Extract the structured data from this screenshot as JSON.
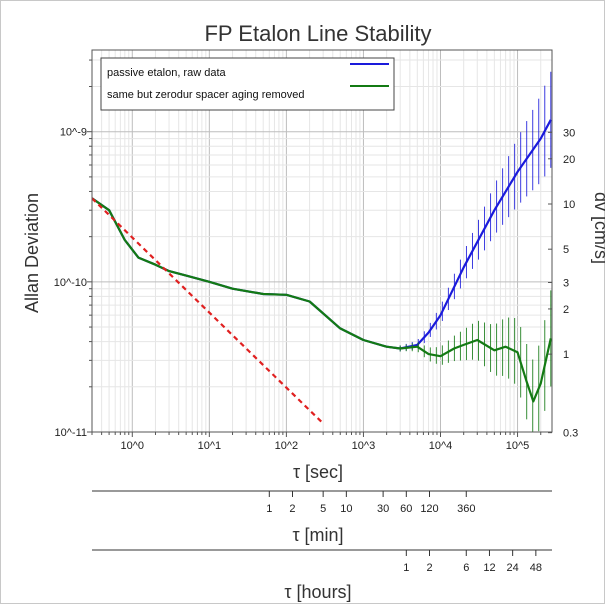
{
  "chart_data": {
    "type": "line",
    "title": "FP Etalon Line Stability",
    "xlabel": "τ [sec]",
    "ylabel": "Allan Deviation",
    "ylabel_right": "dv [cm/s]",
    "x_scale": "log",
    "y_scale": "log",
    "xlim": [
      0.3,
      280000
    ],
    "ylim": [
      1e-11,
      3.5e-09
    ],
    "grid": true,
    "legend_position": "top-left",
    "x_ticks": [
      {
        "value": 1,
        "label": "10^0"
      },
      {
        "value": 10,
        "label": "10^1"
      },
      {
        "value": 100,
        "label": "10^2"
      },
      {
        "value": 1000,
        "label": "10^3"
      },
      {
        "value": 10000,
        "label": "10^4"
      },
      {
        "value": 100000,
        "label": "10^5"
      }
    ],
    "y_ticks": [
      {
        "value": 1e-11,
        "label": "10^-11"
      },
      {
        "value": 1e-10,
        "label": "10^-10"
      },
      {
        "value": 1e-09,
        "label": "10^-9"
      }
    ],
    "right_ticks": [
      {
        "value": 0.3,
        "label": "0.3"
      },
      {
        "value": 1,
        "label": "1"
      },
      {
        "value": 2,
        "label": "2"
      },
      {
        "value": 3,
        "label": "3"
      },
      {
        "value": 5,
        "label": "5"
      },
      {
        "value": 10,
        "label": "10"
      },
      {
        "value": 20,
        "label": "20"
      },
      {
        "value": 30,
        "label": "30"
      }
    ],
    "right_scale_equiv": {
      "dv": 1,
      "allan": 3.3e-11
    },
    "secondary_axes": [
      {
        "label": "τ [min]",
        "seconds_per_unit": 60,
        "ticks": [
          1,
          2,
          5,
          10,
          30,
          60,
          120,
          360
        ]
      },
      {
        "label": "τ [hours]",
        "seconds_per_unit": 3600,
        "ticks": [
          1,
          2,
          6,
          12,
          24,
          48
        ]
      }
    ],
    "series": [
      {
        "name": "passive etalon, raw data",
        "color": "#1a1adb",
        "x": [
          0.3,
          0.5,
          0.8,
          1.2,
          2,
          3,
          5,
          10,
          20,
          50,
          100,
          200,
          500,
          1000,
          2000,
          3000,
          5000,
          7000,
          10000,
          20000,
          50000,
          100000,
          200000,
          270000
        ],
        "y": [
          3.6e-10,
          3e-10,
          1.9e-10,
          1.45e-10,
          1.3e-10,
          1.18e-10,
          1.1e-10,
          1e-10,
          9e-11,
          8.3e-11,
          8.2e-11,
          7.4e-11,
          4.9e-11,
          4.1e-11,
          3.7e-11,
          3.6e-11,
          3.8e-11,
          4.6e-11,
          6e-11,
          1.25e-10,
          3e-10,
          5.4e-10,
          9e-10,
          1.2e-09
        ],
        "error_bars_from_x": 3000
      },
      {
        "name": "same but zerodur spacer aging removed",
        "color": "#137a13",
        "x": [
          0.3,
          0.5,
          0.8,
          1.2,
          2,
          3,
          5,
          10,
          20,
          50,
          100,
          200,
          500,
          1000,
          2000,
          3000,
          5000,
          7000,
          10000,
          15000,
          20000,
          30000,
          50000,
          70000,
          100000,
          130000,
          160000,
          200000,
          270000
        ],
        "y": [
          3.6e-10,
          3e-10,
          1.9e-10,
          1.45e-10,
          1.3e-10,
          1.18e-10,
          1.1e-10,
          1e-10,
          9e-11,
          8.3e-11,
          8.2e-11,
          7.4e-11,
          4.9e-11,
          4.1e-11,
          3.7e-11,
          3.6e-11,
          3.7e-11,
          3.3e-11,
          3.2e-11,
          3.6e-11,
          3.8e-11,
          4.1e-11,
          3.5e-11,
          3.7e-11,
          3.4e-11,
          2.2e-11,
          1.6e-11,
          2.1e-11,
          4.2e-11
        ],
        "error_bars_from_x": 3000
      },
      {
        "name": "",
        "color": "#e02020",
        "dashed": true,
        "x": [
          0.3,
          300
        ],
        "y": [
          3.6e-10,
          1.14e-11
        ]
      }
    ]
  }
}
